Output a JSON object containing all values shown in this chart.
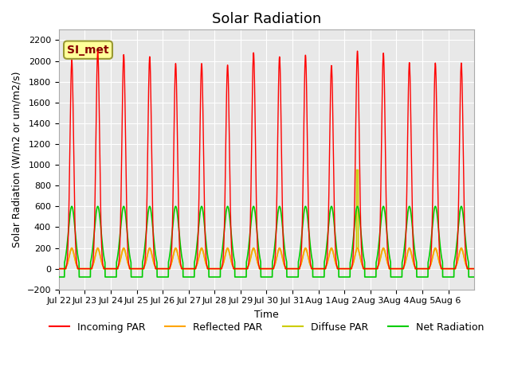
{
  "title": "Solar Radiation",
  "ylabel": "Solar Radiation (W/m2 or um/m2/s)",
  "xlabel": "Time",
  "ylim": [
    -200,
    2300
  ],
  "yticks": [
    -200,
    0,
    200,
    400,
    600,
    800,
    1000,
    1200,
    1400,
    1600,
    1800,
    2000,
    2200
  ],
  "x_tick_labels": [
    "Jul 22",
    "Jul 23",
    "Jul 24",
    "Jul 25",
    "Jul 26",
    "Jul 27",
    "Jul 28",
    "Jul 29",
    "Jul 30",
    "Jul 31",
    "Aug 1",
    "Aug 2",
    "Aug 3",
    "Aug 4",
    "Aug 5",
    "Aug 6"
  ],
  "n_days": 16,
  "incoming_peak": 2100,
  "reflected_peak": 200,
  "diffuse_peak": 190,
  "net_peak": 600,
  "net_night": -80,
  "colors": {
    "incoming": "#ff0000",
    "reflected": "#ffa500",
    "diffuse": "#cccc00",
    "net": "#00cc00",
    "background": "#e8e8e8",
    "figure_bg": "#ffffff",
    "annotation_bg": "#ffff99",
    "annotation_border": "#999933",
    "annotation_text": "#880000"
  },
  "annotation_text": "SI_met",
  "legend_labels": [
    "Incoming PAR",
    "Reflected PAR",
    "Diffuse PAR",
    "Net Radiation"
  ],
  "title_fontsize": 13,
  "axis_fontsize": 9,
  "tick_fontsize": 8
}
